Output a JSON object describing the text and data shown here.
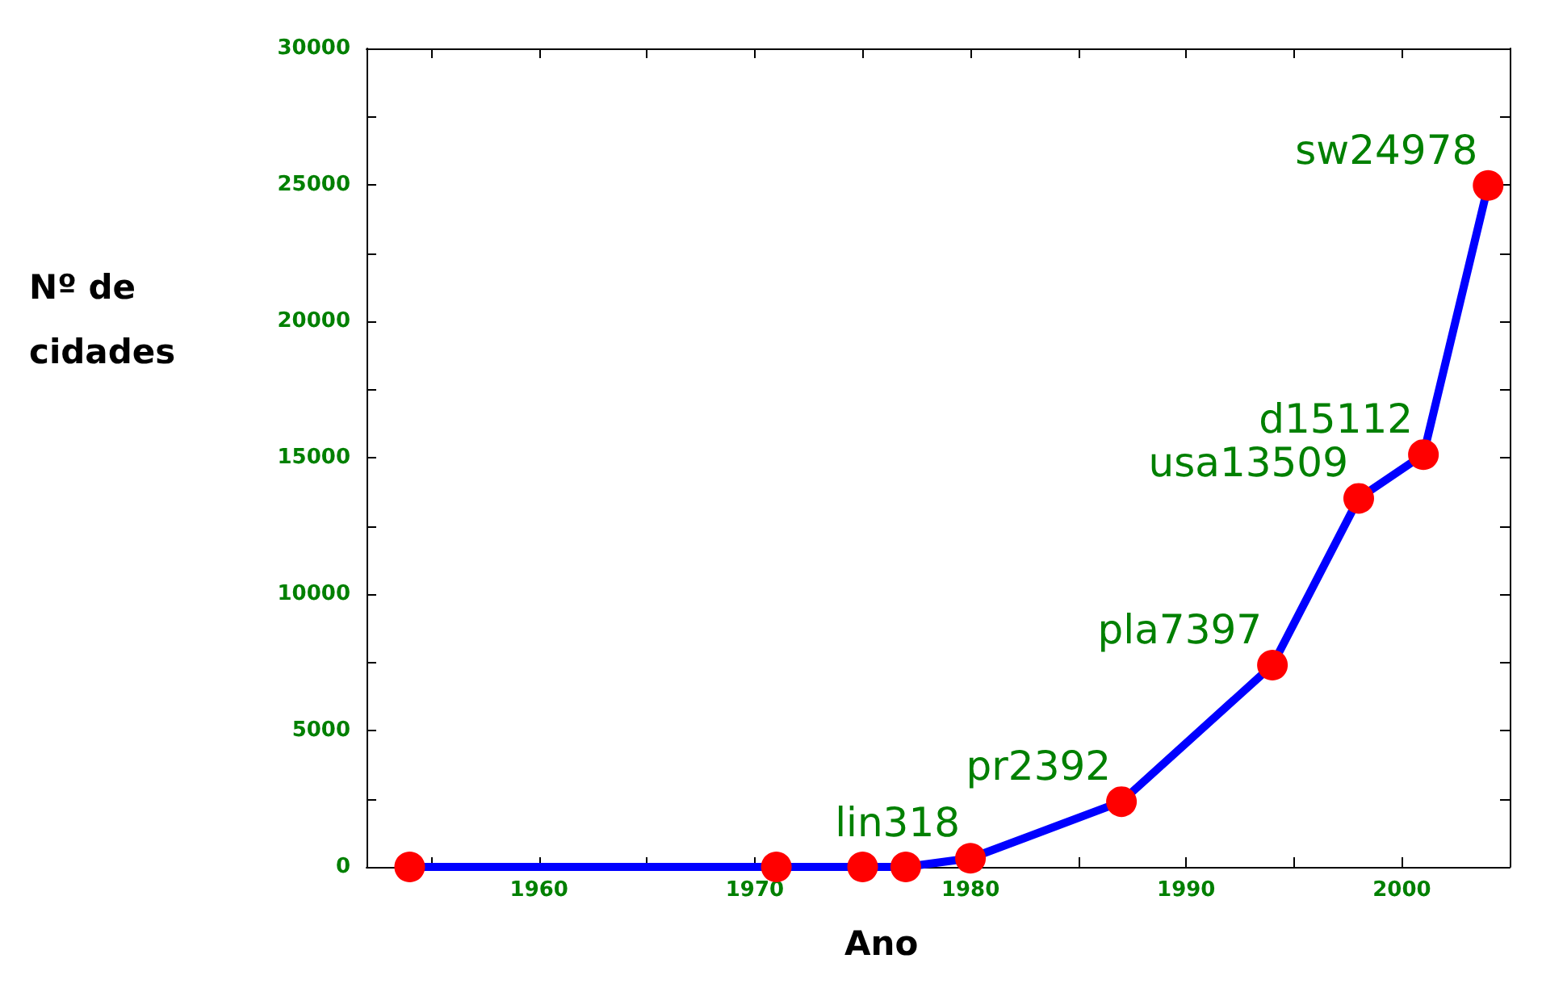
{
  "chart_data": {
    "type": "line",
    "xlabel": "Ano",
    "ylabel": "Nº de\ncidades",
    "x": [
      1954,
      1971,
      1975,
      1977,
      1980,
      1987,
      1994,
      1998,
      2001,
      2004
    ],
    "series": [
      {
        "color": "#0000ff",
        "colors": [
          "#ff0000",
          "#ff0000",
          "#ff0000",
          "#ff0000",
          "#ff0000",
          "#ff0000",
          "#ff0000",
          "#ff0000",
          "#ff0000",
          "#ff0000"
        ],
        "values": [
          0,
          0,
          0,
          0,
          318,
          2392,
          7397,
          13509,
          15112,
          24978
        ],
        "value_labels": [
          null,
          null,
          null,
          null,
          "lin318",
          "pr2392",
          "pla7397",
          "usa13509",
          "d15112",
          "sw24978"
        ]
      }
    ],
    "xlim": [
      1952,
      2005
    ],
    "xticks": [
      {
        "value": 1955,
        "label": null
      },
      1960,
      {
        "value": 1965,
        "label": null
      },
      1970,
      {
        "value": 1975,
        "label": null
      },
      1980,
      {
        "value": 1985,
        "label": null
      },
      1990,
      {
        "value": 1995,
        "label": null
      },
      2000
    ],
    "ylim": [
      0,
      30000
    ],
    "yticks": [
      0,
      {
        "value": 2500,
        "label": null
      },
      5000,
      {
        "value": 7500,
        "label": null
      },
      10000,
      {
        "value": 12500,
        "label": null
      },
      15000,
      {
        "value": 17500,
        "label": null
      },
      20000,
      {
        "value": 22500,
        "label": null
      },
      25000,
      {
        "value": 27500,
        "label": null
      },
      30000
    ],
    "grid": false,
    "marker": "circle",
    "line_style": "solid"
  }
}
